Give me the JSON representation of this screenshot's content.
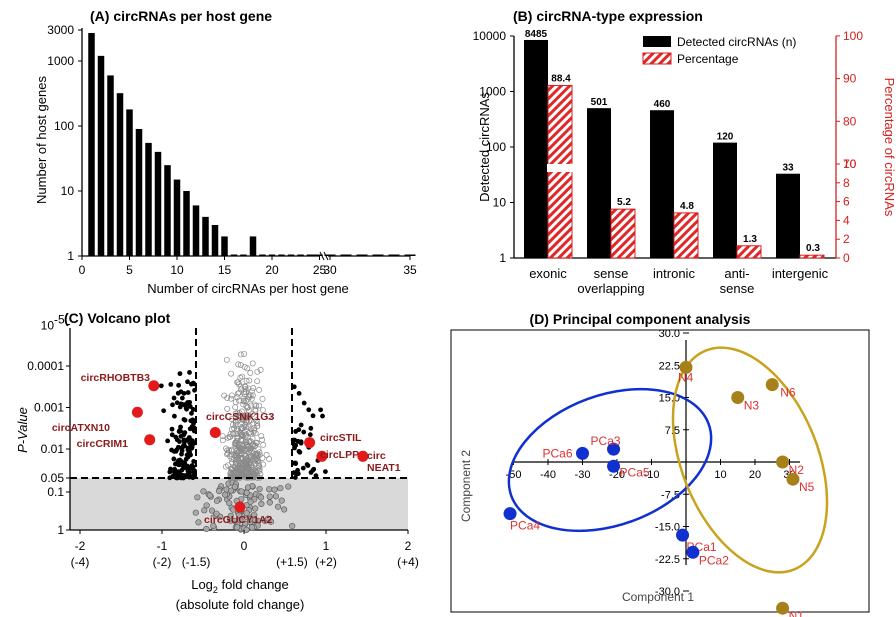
{
  "chart_data": [
    {
      "panel": "A",
      "type": "bar",
      "title": "(A) circRNAs per host gene",
      "xlabel": "Number of circRNAs per host gene",
      "ylabel": "Number of host genes",
      "yscale": "log",
      "ylim": [
        1,
        3000
      ],
      "yticks": [
        "1",
        "10",
        "100",
        "1000",
        "3000"
      ],
      "xticks": [
        "0",
        "5",
        "10",
        "15",
        "20",
        "25",
        "30",
        "35"
      ],
      "x_break": [
        25,
        28
      ],
      "x": [
        1,
        2,
        3,
        4,
        5,
        6,
        7,
        8,
        9,
        10,
        11,
        12,
        13,
        14,
        15,
        16,
        17,
        18,
        19,
        20,
        21,
        22,
        23,
        24,
        25,
        29,
        30,
        31,
        32,
        33,
        34,
        35
      ],
      "values": [
        2700,
        1200,
        600,
        320,
        180,
        90,
        55,
        40,
        25,
        15,
        10,
        6,
        4,
        3,
        2,
        1,
        1,
        2,
        1,
        1,
        1,
        1,
        1,
        1,
        1,
        1,
        1,
        1,
        1,
        1,
        1,
        1
      ]
    },
    {
      "panel": "B",
      "type": "bar",
      "title": "(B) circRNA-type expression",
      "ylabel": "Detected circRNAs",
      "y2label": "Percentage of circRNAs",
      "yscale": "log",
      "ylim": [
        1,
        10000
      ],
      "yticks": [
        "1",
        "10",
        "100",
        "1000",
        "10000"
      ],
      "y2ticks_lower": [
        "0",
        "2",
        "4",
        "6",
        "8",
        "10"
      ],
      "y2ticks_upper": [
        "70",
        "80",
        "90",
        "100"
      ],
      "categories": [
        "exonic",
        "sense\noverlapping",
        "intronic",
        "anti-\nsense",
        "intergenic"
      ],
      "series": [
        {
          "name": "Detected circRNAs (n)",
          "values": [
            8485,
            501,
            460,
            120,
            33
          ],
          "labels": [
            "8485",
            "501",
            "460",
            "120",
            "33"
          ],
          "color": "#000000"
        },
        {
          "name": "Percentage",
          "values": [
            88.4,
            5.2,
            4.8,
            1.3,
            0.3
          ],
          "labels": [
            "88.4",
            "5.2",
            "4.8",
            "1.3",
            "0.3"
          ],
          "color": "#d42020"
        }
      ],
      "legend": "top-right"
    },
    {
      "panel": "C",
      "type": "scatter",
      "title": "(C) Volcano plot",
      "ylabel": "P-Value",
      "xlabel_main": "Log",
      "xlabel_sub": "2",
      "xlabel_rest": " fold change",
      "xlabel2": "(absolute fold change)",
      "xticks": [
        "-2",
        "-1",
        "0",
        "1",
        "2"
      ],
      "xticks_abs": [
        "(-4)",
        "(-2)",
        "(-1.5)",
        "(+1.5)",
        "(+2)",
        "(+4)"
      ],
      "yticks": [
        "10",
        "-5",
        "0.0001",
        "0.001",
        "0.01",
        "0.05",
        "0.1",
        "1"
      ],
      "thresholds": {
        "p": 0.05,
        "fc_low": -0.585,
        "fc_high": 0.585
      },
      "highlighted": [
        {
          "name": "circRHOBTB3",
          "x": -1.1,
          "p": 0.0003
        },
        {
          "name": "circATXN10",
          "x": -1.3,
          "p": 0.0013
        },
        {
          "name": "circCRIM1",
          "x": -1.15,
          "p": 0.006
        },
        {
          "name": "circCSNK1G3",
          "x": -0.35,
          "p": 0.004
        },
        {
          "name": "circSTIL",
          "x": 0.8,
          "p": 0.007
        },
        {
          "name": "circLPP",
          "x": 0.95,
          "p": 0.015
        },
        {
          "name": "circ",
          "name2": "NEAT1",
          "x": 1.45,
          "p": 0.015
        },
        {
          "name": "circGUCY1A2",
          "x": -0.05,
          "p": 0.25
        }
      ]
    },
    {
      "panel": "D",
      "type": "scatter",
      "title": "(D) Principal component analysis",
      "xlabel": "Component 1",
      "ylabel": "Component 2",
      "xticks": [
        "-50",
        "-40",
        "-30",
        "-20",
        "-10",
        "10",
        "20",
        "30"
      ],
      "yticks": [
        "30.0",
        "22.5",
        "15.0",
        "7.5",
        "-7.5",
        "-15.0",
        "-22.5",
        "-30.0"
      ],
      "series": [
        {
          "name": "PCa",
          "color": "#1030d0",
          "points": [
            {
              "label": "PCa3",
              "x": -21,
              "y": 3
            },
            {
              "label": "PCa6",
              "x": -30,
              "y": 2
            },
            {
              "label": "PCa5",
              "x": -21,
              "y": -1
            },
            {
              "label": "PCa4",
              "x": -51,
              "y": -12
            },
            {
              "label": "PCa1",
              "x": -1,
              "y": -17
            },
            {
              "label": "PCa2",
              "x": 2,
              "y": -21
            }
          ]
        },
        {
          "name": "N",
          "color": "#a8801a",
          "points": [
            {
              "label": "N4",
              "x": 0,
              "y": 22
            },
            {
              "label": "N3",
              "x": 15,
              "y": 15
            },
            {
              "label": "N6",
              "x": 25,
              "y": 18
            },
            {
              "label": "N2",
              "x": 28,
              "y": 0
            },
            {
              "label": "N5",
              "x": 31,
              "y": -4
            },
            {
              "label": "N1",
              "x": 28,
              "y": -34
            }
          ]
        }
      ]
    }
  ]
}
